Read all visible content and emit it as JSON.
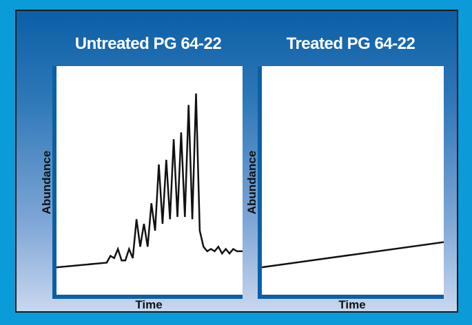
{
  "chart_data": [
    {
      "type": "line",
      "title": "Untreated PG 64-22",
      "xlabel": "Time",
      "ylabel": "Abundance",
      "grid": false,
      "xlim": [
        0,
        100
      ],
      "ylim": [
        0,
        100
      ],
      "series": [
        {
          "x": [
            0,
            27,
            29,
            31,
            33,
            35,
            37,
            39,
            41,
            43,
            45,
            47,
            49,
            51,
            53,
            55,
            57,
            59,
            61,
            63,
            65,
            67,
            69,
            71,
            73,
            75,
            77,
            79,
            81,
            83,
            85,
            87,
            89,
            91,
            93,
            95,
            97,
            99,
            100
          ],
          "y": [
            12,
            14,
            17,
            16,
            20,
            15,
            15,
            20,
            16,
            33,
            21,
            31,
            21,
            40,
            28,
            57,
            31,
            59,
            33,
            68,
            34,
            71,
            34,
            83,
            33,
            88,
            28,
            21,
            19,
            20,
            19,
            21,
            18,
            20,
            18,
            20,
            19,
            19,
            19
          ]
        }
      ]
    },
    {
      "type": "line",
      "title": "Treated PG 64-22",
      "xlabel": "Time",
      "ylabel": "Abundance",
      "grid": false,
      "xlim": [
        0,
        100
      ],
      "ylim": [
        0,
        100
      ],
      "series": [
        {
          "x": [
            0,
            100
          ],
          "y": [
            12,
            23
          ]
        }
      ]
    }
  ]
}
